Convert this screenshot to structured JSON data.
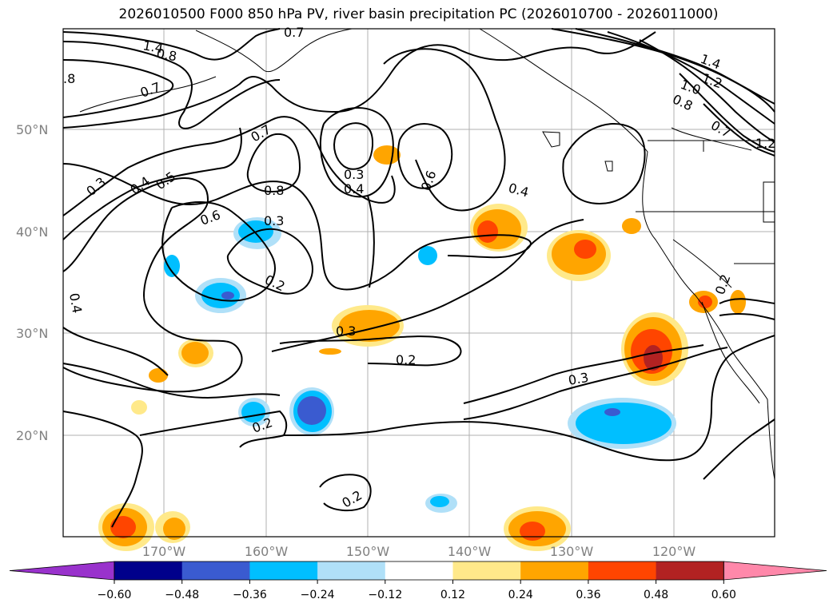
{
  "title": "2026010500 F000 850 hPa PV, river basin precipitation PC (2026010700 - 2026011000)",
  "lat_labels": [
    "50°N",
    "40°N",
    "30°N",
    "20°N"
  ],
  "lon_labels": [
    "170°W",
    "160°W",
    "150°W",
    "140°W",
    "130°W",
    "120°W"
  ],
  "contour_labels": [
    "1.4",
    "1.2",
    "1.0",
    "0.8",
    "0.7",
    ".8",
    "0.7",
    "1.4",
    "1.2",
    "0.8",
    "0.7",
    "0.5",
    "0.4",
    "0.3",
    "0.7",
    "0.8",
    "0.6",
    "0.3",
    "0.2",
    "0.3",
    "0.4",
    "0.6",
    "0.4",
    "0.3",
    "0.2",
    "0.3",
    "0.2",
    "0.2",
    "0.4",
    "0.2"
  ],
  "colorbar": {
    "ticks": [
      "−0.60",
      "−0.48",
      "−0.36",
      "−0.24",
      "−0.12",
      "0.12",
      "0.24",
      "0.36",
      "0.48",
      "0.60"
    ],
    "colors": [
      "#9932cc",
      "#00008b",
      "#3a5bd0",
      "#00bfff",
      "#b0e0f8",
      "#ffffff",
      "#ffe98a",
      "#ffa500",
      "#ff4500",
      "#b22222",
      "#ff88aa"
    ]
  }
}
